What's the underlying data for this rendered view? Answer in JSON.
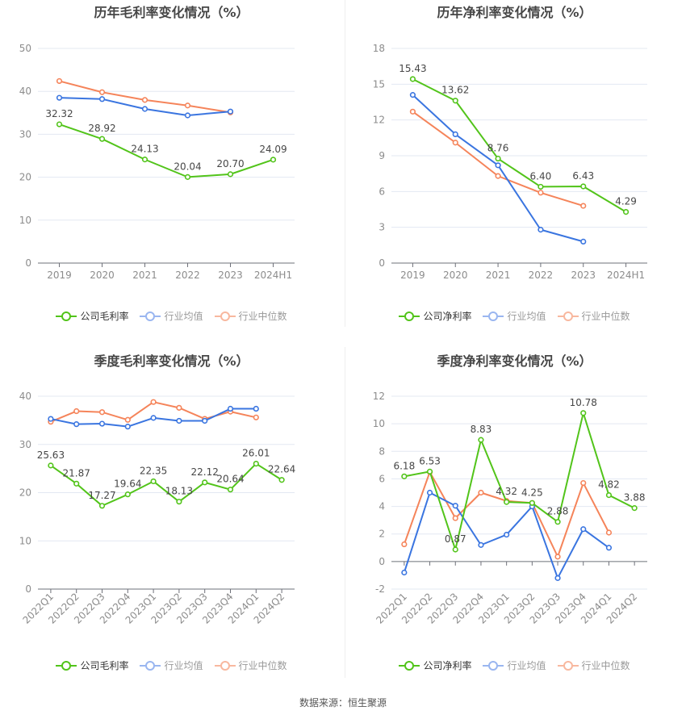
{
  "footer": "数据来源：恒生聚源",
  "colors": {
    "company": "#52c41a",
    "avg": "#3a75e0",
    "median": "#f5845a",
    "avg_legend": "#9ab6f0",
    "median_legend": "#f8b89f",
    "grid": "#e3e8f2",
    "axis": "#6e7079",
    "tick_text": "#8c8c8c",
    "label_text": "#464646"
  },
  "chart_data": [
    {
      "id": "annual-gross",
      "type": "line",
      "title": "历年毛利率变化情况（%）",
      "categories": [
        "2019",
        "2020",
        "2021",
        "2022",
        "2023",
        "2024H1"
      ],
      "ylim": [
        0,
        50
      ],
      "yticks": [
        "0",
        "10",
        "20",
        "30",
        "40",
        "50"
      ],
      "grid": true,
      "legend_position": "bottom",
      "rotate_labels": false,
      "series": [
        {
          "name": "公司毛利率",
          "key": "company",
          "values": [
            32.32,
            28.92,
            24.13,
            20.04,
            20.7,
            24.09
          ],
          "labels": [
            "32.32",
            "28.92",
            "24.13",
            "20.04",
            "20.70",
            "24.09"
          ]
        },
        {
          "name": "行业均值",
          "key": "avg",
          "values": [
            38.5,
            38.2,
            35.9,
            34.4,
            35.3,
            null
          ]
        },
        {
          "name": "行业中位数",
          "key": "median",
          "values": [
            42.4,
            39.8,
            38.0,
            36.7,
            35.1,
            null
          ]
        }
      ]
    },
    {
      "id": "annual-net",
      "type": "line",
      "title": "历年净利率变化情况（%）",
      "categories": [
        "2019",
        "2020",
        "2021",
        "2022",
        "2023",
        "2024H1"
      ],
      "ylim": [
        0,
        18
      ],
      "yticks": [
        "0",
        "3",
        "6",
        "9",
        "12",
        "15",
        "18"
      ],
      "grid": true,
      "legend_position": "bottom",
      "rotate_labels": false,
      "series": [
        {
          "name": "公司净利率",
          "key": "company",
          "values": [
            15.43,
            13.62,
            8.76,
            6.4,
            6.43,
            4.29
          ],
          "labels": [
            "15.43",
            "13.62",
            "8.76",
            "6.40",
            "6.43",
            "4.29"
          ]
        },
        {
          "name": "行业均值",
          "key": "avg",
          "values": [
            14.1,
            10.8,
            8.2,
            2.8,
            1.8,
            null
          ]
        },
        {
          "name": "行业中位数",
          "key": "median",
          "values": [
            12.7,
            10.1,
            7.3,
            5.9,
            4.8,
            null
          ]
        }
      ]
    },
    {
      "id": "quarterly-gross",
      "type": "line",
      "title": "季度毛利率变化情况（%）",
      "categories": [
        "2022Q1",
        "2022Q2",
        "2022Q3",
        "2022Q4",
        "2023Q1",
        "2023Q2",
        "2023Q3",
        "2023Q4",
        "2024Q1",
        "2024Q2"
      ],
      "ylim": [
        0,
        40
      ],
      "yticks": [
        "0",
        "10",
        "20",
        "30",
        "40"
      ],
      "grid": true,
      "legend_position": "bottom",
      "rotate_labels": true,
      "series": [
        {
          "name": "公司毛利率",
          "key": "company",
          "values": [
            25.63,
            21.87,
            17.27,
            19.64,
            22.35,
            18.13,
            22.12,
            20.64,
            26.01,
            22.64
          ],
          "labels": [
            "25.63",
            "21.87",
            "17.27",
            "19.64",
            "22.35",
            "18.13",
            "22.12",
            "20.64",
            "26.01",
            "22.64"
          ]
        },
        {
          "name": "行业均值",
          "key": "avg",
          "values": [
            35.3,
            34.2,
            34.3,
            33.7,
            35.5,
            34.9,
            34.9,
            37.4,
            37.4,
            null
          ]
        },
        {
          "name": "行业中位数",
          "key": "median",
          "values": [
            34.7,
            36.9,
            36.7,
            35.1,
            38.8,
            37.6,
            35.3,
            36.8,
            35.6,
            null
          ]
        }
      ]
    },
    {
      "id": "quarterly-net",
      "type": "line",
      "title": "季度净利率变化情况（%）",
      "categories": [
        "2022Q1",
        "2022Q2",
        "2022Q3",
        "2022Q4",
        "2023Q1",
        "2023Q2",
        "2023Q3",
        "2023Q4",
        "2024Q1",
        "2024Q2"
      ],
      "ylim": [
        -2,
        12
      ],
      "yticks": [
        "-2",
        "0",
        "2",
        "4",
        "6",
        "8",
        "10",
        "12"
      ],
      "grid": true,
      "legend_position": "bottom",
      "rotate_labels": true,
      "series": [
        {
          "name": "公司净利率",
          "key": "company",
          "values": [
            6.18,
            6.53,
            0.87,
            8.83,
            4.32,
            4.25,
            2.88,
            10.78,
            4.82,
            3.88
          ],
          "labels": [
            "6.18",
            "6.53",
            "0.87",
            "8.83",
            "4.32",
            "4.25",
            "2.88",
            "10.78",
            "4.82",
            "3.88"
          ]
        },
        {
          "name": "行业均值",
          "key": "avg",
          "values": [
            -0.8,
            5.0,
            4.05,
            1.2,
            1.95,
            4.0,
            -1.2,
            2.35,
            1.0,
            null
          ]
        },
        {
          "name": "行业中位数",
          "key": "median",
          "values": [
            1.25,
            6.5,
            3.15,
            5.0,
            4.4,
            4.25,
            0.35,
            5.7,
            2.1,
            null
          ]
        }
      ]
    }
  ]
}
